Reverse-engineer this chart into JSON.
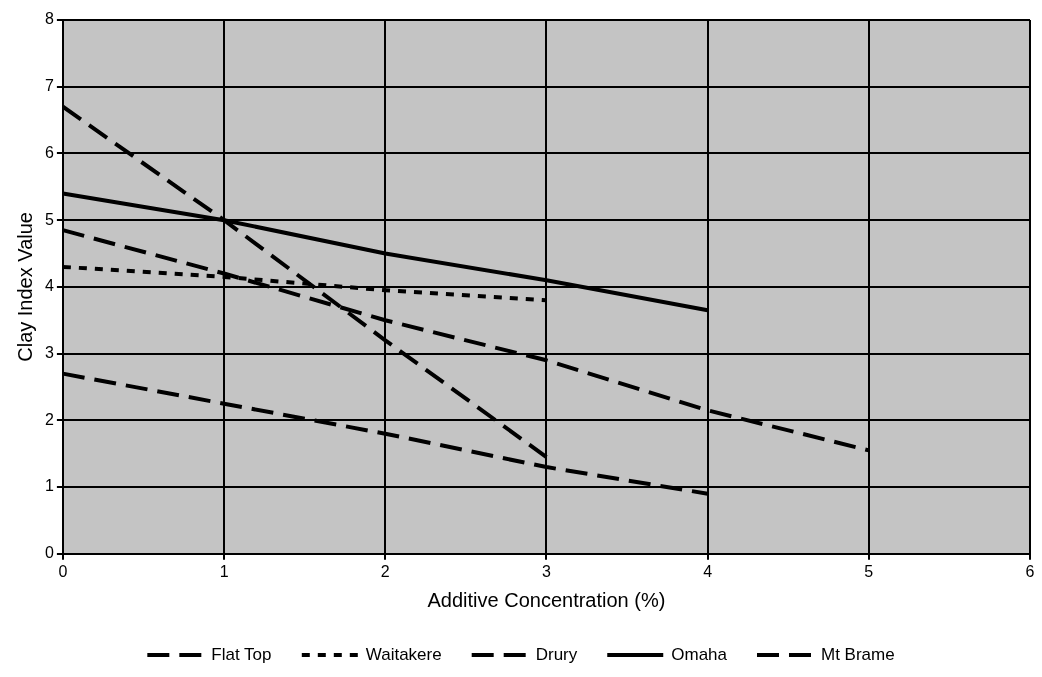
{
  "chart_data": {
    "type": "line",
    "xlabel": "Additive Concentration (%)",
    "ylabel": "Clay Index Value",
    "xlim": [
      0,
      6
    ],
    "xticks": [
      0,
      1,
      2,
      3,
      4,
      5,
      6
    ],
    "ylim": [
      0,
      8
    ],
    "yticks": [
      0,
      1,
      2,
      3,
      4,
      5,
      6,
      7,
      8
    ],
    "grid": true,
    "legend": "bottom",
    "marker": "none",
    "series": [
      {
        "name": "Flat Top",
        "color": "#000000",
        "line_style": "dashed",
        "x": [
          0,
          1,
          2,
          3
        ],
        "values": [
          6.7,
          5.0,
          3.2,
          1.45
        ]
      },
      {
        "name": "Waitakere",
        "color": "#000000",
        "line_style": "dotted",
        "x": [
          0,
          1,
          2,
          3
        ],
        "values": [
          4.3,
          4.15,
          3.95,
          3.8
        ]
      },
      {
        "name": "Drury",
        "color": "#000000",
        "line_style": "dashed",
        "x": [
          0,
          1,
          2,
          3,
          4
        ],
        "values": [
          2.7,
          2.25,
          1.8,
          1.3,
          0.9
        ]
      },
      {
        "name": "Omaha",
        "color": "#000000",
        "line_style": "solid",
        "x": [
          0,
          1,
          2,
          3,
          4
        ],
        "values": [
          5.4,
          5.0,
          4.5,
          4.1,
          3.65
        ]
      },
      {
        "name": "Mt Brame",
        "color": "#000000",
        "line_style": "dashed",
        "x": [
          0,
          1,
          2,
          3,
          4,
          5
        ],
        "values": [
          4.85,
          4.2,
          3.5,
          2.9,
          2.15,
          1.55
        ]
      }
    ]
  }
}
